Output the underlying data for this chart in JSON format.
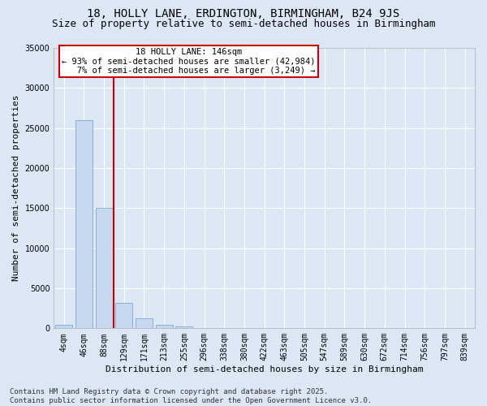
{
  "title": "18, HOLLY LANE, ERDINGTON, BIRMINGHAM, B24 9JS",
  "subtitle": "Size of property relative to semi-detached houses in Birmingham",
  "xlabel": "Distribution of semi-detached houses by size in Birmingham",
  "ylabel": "Number of semi-detached properties",
  "categories": [
    "4sqm",
    "46sqm",
    "88sqm",
    "129sqm",
    "171sqm",
    "213sqm",
    "255sqm",
    "296sqm",
    "338sqm",
    "380sqm",
    "422sqm",
    "463sqm",
    "505sqm",
    "547sqm",
    "589sqm",
    "630sqm",
    "672sqm",
    "714sqm",
    "756sqm",
    "797sqm",
    "839sqm"
  ],
  "bar_values": [
    400,
    26000,
    15000,
    3200,
    1200,
    400,
    200,
    80,
    0,
    0,
    0,
    0,
    0,
    0,
    0,
    0,
    0,
    0,
    0,
    0,
    0
  ],
  "bar_color": "#c5d8f0",
  "bar_edge_color": "#7aaad4",
  "background_color": "#dce6f5",
  "plot_bg_color": "#dce6f5",
  "grid_color": "#ffffff",
  "vline_x": 2.5,
  "vline_color": "#cc0000",
  "ylim": [
    0,
    35000
  ],
  "yticks": [
    0,
    5000,
    10000,
    15000,
    20000,
    25000,
    30000,
    35000
  ],
  "annotation_line1": "18 HOLLY LANE: 146sqm",
  "annotation_line2": "← 93% of semi-detached houses are smaller (42,984)",
  "annotation_line3": "   7% of semi-detached houses are larger (3,249) →",
  "annotation_box_color": "#ffffff",
  "annotation_border_color": "#cc0000",
  "footer_text": "Contains HM Land Registry data © Crown copyright and database right 2025.\nContains public sector information licensed under the Open Government Licence v3.0.",
  "title_fontsize": 10,
  "subtitle_fontsize": 9,
  "axis_label_fontsize": 8,
  "tick_fontsize": 7,
  "annotation_fontsize": 7.5,
  "footer_fontsize": 6.5
}
